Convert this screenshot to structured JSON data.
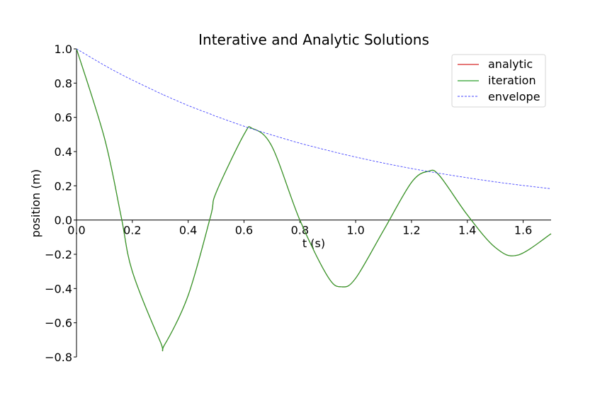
{
  "chart_data": {
    "type": "line",
    "title": "Interative and Analytic Solutions",
    "xlabel": "t (s)",
    "ylabel": "position (m)",
    "xlim": [
      0.0,
      1.7
    ],
    "ylim": [
      -0.8,
      1.0
    ],
    "x_ticks": [
      "0.0",
      "0.2",
      "0.4",
      "0.6",
      "0.8",
      "1.0",
      "1.2",
      "1.4",
      "1.6"
    ],
    "y_ticks": [
      "1.0",
      "0.8",
      "0.6",
      "0.4",
      "0.2",
      "0.0",
      "−0.2",
      "−0.4",
      "−0.6",
      "−0.8"
    ],
    "grid": false,
    "legend_position": "top-right",
    "x": [
      0.0,
      0.1,
      0.16,
      0.2,
      0.3,
      0.315,
      0.4,
      0.48,
      0.5,
      0.6,
      0.63,
      0.7,
      0.8,
      0.9,
      0.95,
      1.0,
      1.1,
      1.2,
      1.26,
      1.3,
      1.4,
      1.5,
      1.58,
      1.7
    ],
    "series": [
      {
        "name": "analytic",
        "color": "#d62728",
        "style": "solid",
        "values": [
          1.0,
          0.48,
          0.02,
          -0.3,
          -0.71,
          -0.73,
          -0.44,
          0.02,
          0.16,
          0.5,
          0.535,
          0.43,
          0.0,
          -0.33,
          -0.39,
          -0.34,
          -0.06,
          0.22,
          0.285,
          0.26,
          0.03,
          -0.16,
          -0.205,
          -0.08
        ]
      },
      {
        "name": "iteration",
        "color": "#2ca02c",
        "style": "solid",
        "values": [
          1.0,
          0.48,
          0.02,
          -0.3,
          -0.71,
          -0.73,
          -0.44,
          0.02,
          0.16,
          0.5,
          0.535,
          0.43,
          0.0,
          -0.33,
          -0.39,
          -0.34,
          -0.06,
          0.22,
          0.285,
          0.26,
          0.03,
          -0.16,
          -0.205,
          -0.08
        ]
      },
      {
        "name": "envelope",
        "color": "#4444ff",
        "style": "dashed",
        "values": [
          1.0,
          0.904,
          0.851,
          0.818,
          0.74,
          0.729,
          0.669,
          0.619,
          0.606,
          0.548,
          0.532,
          0.497,
          0.449,
          0.407,
          0.387,
          0.368,
          0.333,
          0.301,
          0.284,
          0.273,
          0.247,
          0.223,
          0.206,
          0.183
        ]
      }
    ]
  }
}
